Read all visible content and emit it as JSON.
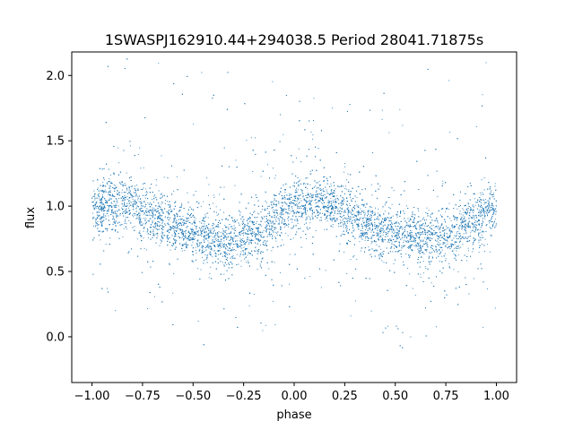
{
  "chart_data": {
    "type": "scatter",
    "title": "1SWASPJ162910.44+294038.5 Period 28041.71875s",
    "xlabel": "phase",
    "ylabel": "flux",
    "xlim": [
      -1.1,
      1.1
    ],
    "ylim": [
      -0.35,
      2.18
    ],
    "xticks": [
      -1.0,
      -0.75,
      -0.5,
      -0.25,
      0.0,
      0.25,
      0.5,
      0.75,
      1.0
    ],
    "xtick_labels": [
      "−1.00",
      "−0.75",
      "−0.50",
      "−0.25",
      "0.00",
      "0.25",
      "0.50",
      "0.75",
      "1.00"
    ],
    "yticks": [
      0.0,
      0.5,
      1.0,
      1.5,
      2.0
    ],
    "ytick_labels": [
      "0.0",
      "0.5",
      "1.0",
      "1.5",
      "2.0"
    ],
    "grid": false,
    "legend": "none",
    "point_color": "#1f77b4",
    "series": [
      {
        "description_of_trend": "phase-folded light curve, dense band",
        "points": [
          [
            -1.0,
            0.98
          ],
          [
            -0.95,
            1.0
          ],
          [
            -0.9,
            1.02
          ],
          [
            -0.85,
            1.02
          ],
          [
            -0.8,
            1.0
          ],
          [
            -0.75,
            0.97
          ],
          [
            -0.7,
            0.94
          ],
          [
            -0.65,
            0.9
          ],
          [
            -0.6,
            0.86
          ],
          [
            -0.55,
            0.82
          ],
          [
            -0.5,
            0.79
          ],
          [
            -0.45,
            0.77
          ],
          [
            -0.4,
            0.75
          ],
          [
            -0.35,
            0.74
          ],
          [
            -0.3,
            0.74
          ],
          [
            -0.25,
            0.75
          ],
          [
            -0.2,
            0.78
          ],
          [
            -0.15,
            0.83
          ],
          [
            -0.1,
            0.89
          ],
          [
            -0.05,
            0.95
          ],
          [
            0.0,
            0.99
          ],
          [
            0.05,
            1.02
          ],
          [
            0.1,
            1.03
          ],
          [
            0.15,
            1.02
          ],
          [
            0.2,
            0.99
          ],
          [
            0.25,
            0.96
          ],
          [
            0.3,
            0.92
          ],
          [
            0.35,
            0.88
          ],
          [
            0.4,
            0.84
          ],
          [
            0.45,
            0.81
          ],
          [
            0.5,
            0.79
          ],
          [
            0.55,
            0.77
          ],
          [
            0.6,
            0.76
          ],
          [
            0.65,
            0.75
          ],
          [
            0.7,
            0.75
          ],
          [
            0.75,
            0.77
          ],
          [
            0.8,
            0.8
          ],
          [
            0.85,
            0.85
          ],
          [
            0.9,
            0.9
          ],
          [
            0.95,
            0.95
          ],
          [
            1.0,
            0.99
          ]
        ]
      }
    ]
  }
}
